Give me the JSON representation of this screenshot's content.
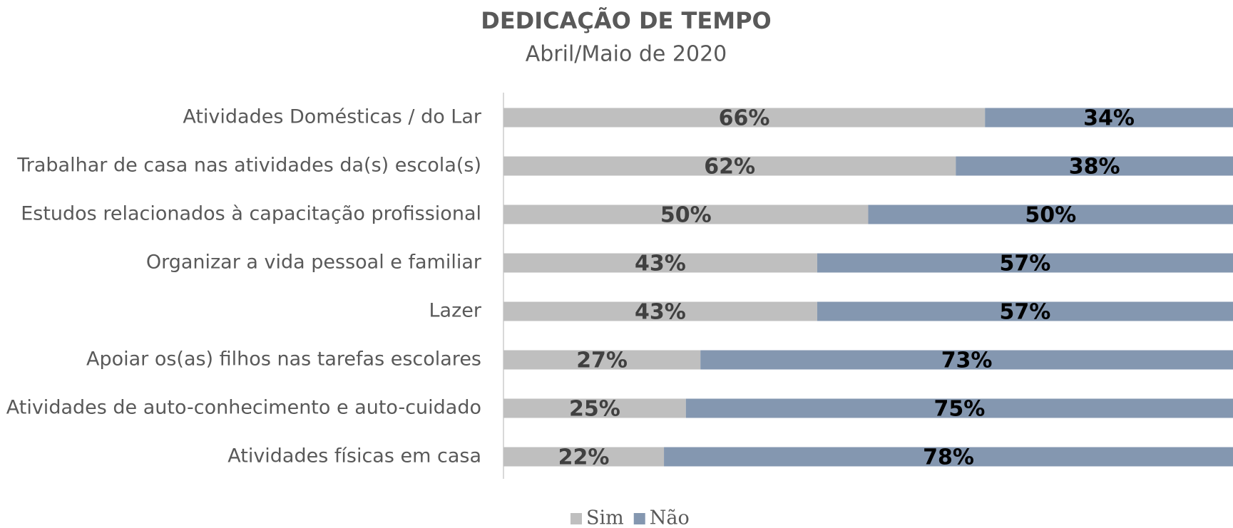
{
  "chart_data": {
    "type": "stacked_barh",
    "title": "DEDICAÇÃO DE TEMPO",
    "subtitle": "Abril/Maio de 2020",
    "categories": [
      "Atividades Domésticas / do Lar",
      "Trabalhar de casa nas atividades da(s) escola(s)",
      "Estudos relacionados à capacitação profissional",
      "Organizar a vida pessoal e familiar",
      "Lazer",
      "Apoiar os(as) filhos nas tarefas escolares",
      "Atividades de auto-conhecimento e auto-cuidado",
      "Atividades físicas em casa"
    ],
    "series": [
      {
        "name": "Sim",
        "color": "#bfbfbf",
        "label_color": "#404040",
        "values": [
          66,
          62,
          50,
          43,
          43,
          27,
          25,
          22
        ],
        "value_labels": [
          "66%",
          "62%",
          "50%",
          "43%",
          "43%",
          "27%",
          "25%",
          "22%"
        ]
      },
      {
        "name": "Não",
        "color": "#8497b0",
        "label_color": "#000000",
        "values": [
          34,
          38,
          50,
          57,
          57,
          73,
          75,
          78
        ],
        "value_labels": [
          "34%",
          "38%",
          "50%",
          "57%",
          "57%",
          "73%",
          "75%",
          "78%"
        ]
      }
    ],
    "xlim": [
      0,
      100
    ],
    "legend": "bottom"
  }
}
